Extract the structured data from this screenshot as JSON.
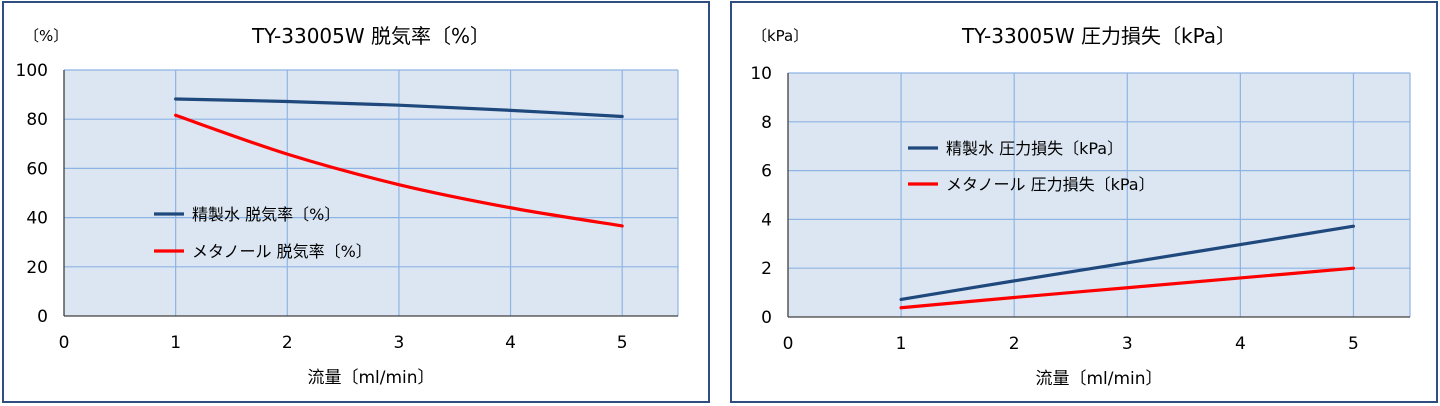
{
  "chart_data": [
    {
      "type": "line",
      "title": "TY-33005W 脱気率〔%〕",
      "unit_label": "〔%〕",
      "xlabel": "流量〔ml/min〕",
      "ylabel": "",
      "xlim": [
        0,
        5.5
      ],
      "ylim": [
        0,
        100
      ],
      "x_ticks": [
        0,
        1,
        2,
        3,
        4,
        5
      ],
      "y_ticks": [
        0,
        20,
        40,
        60,
        80,
        100
      ],
      "grid": true,
      "legend_position": "center-left",
      "series": [
        {
          "name": "精製水 脱気率〔%〕",
          "color": "#1f497d",
          "x": [
            1,
            2,
            3,
            4,
            5
          ],
          "y": [
            88.2,
            87.2,
            85.7,
            83.6,
            81.1
          ]
        },
        {
          "name": "メタノール 脱気率〔%〕",
          "color": "#ff0000",
          "x": [
            1,
            2,
            3,
            4,
            5
          ],
          "y": [
            81.6,
            65.8,
            53.4,
            44.0,
            36.6
          ]
        }
      ]
    },
    {
      "type": "line",
      "title": "TY-33005W 圧力損失〔kPa〕",
      "unit_label": "〔kPa〕",
      "xlabel": "流量〔ml/min〕",
      "ylabel": "",
      "xlim": [
        0,
        5.5
      ],
      "ylim": [
        0,
        10
      ],
      "x_ticks": [
        0,
        1,
        2,
        3,
        4,
        5
      ],
      "y_ticks": [
        0,
        2,
        4,
        6,
        8,
        10
      ],
      "grid": true,
      "legend_position": "upper-left",
      "series": [
        {
          "name": "精製水 圧力損失〔kPa〕",
          "color": "#1f497d",
          "x": [
            1,
            2,
            3,
            4,
            5
          ],
          "y": [
            0.72,
            1.48,
            2.22,
            2.97,
            3.72
          ]
        },
        {
          "name": "メタノール 圧力損失〔kPa〕",
          "color": "#ff0000",
          "x": [
            1,
            2,
            3,
            4,
            5
          ],
          "y": [
            0.38,
            0.8,
            1.2,
            1.6,
            2.0
          ]
        }
      ]
    }
  ]
}
